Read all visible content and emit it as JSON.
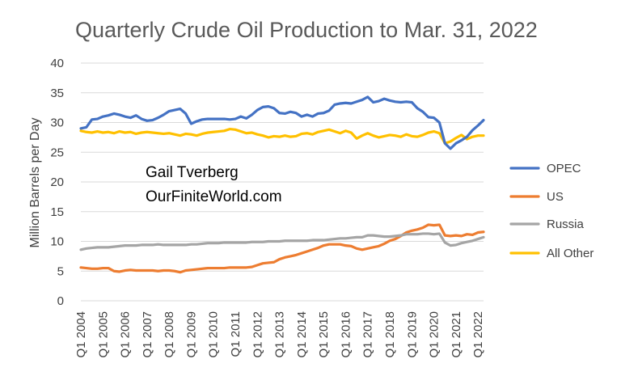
{
  "chart_data": {
    "type": "line",
    "title": "Quarterly Crude Oil Production to Mar. 31, 2022",
    "ylabel": "Million Barrels per Day",
    "xlabel": "",
    "ylim": [
      0,
      40
    ],
    "yticks": [
      0,
      5,
      10,
      15,
      20,
      25,
      30,
      35,
      40
    ],
    "grid": true,
    "legend_position": "right",
    "x_tick_labels": [
      "Q1 2004",
      "Q1 2005",
      "Q1 2006",
      "Q1 2007",
      "Q1 2008",
      "Q1 2009",
      "Q1 2010",
      "Q1 2011",
      "Q1 2012",
      "Q1 2013",
      "Q1 2014",
      "Q1 2015",
      "Q1 2016",
      "Q1 2017",
      "Q1 2018",
      "Q1 2019",
      "Q1 2020",
      "Q1 2021",
      "Q1 2022"
    ],
    "x_start": "Q1 2004",
    "x_end": "Q1 2022",
    "annotations": [
      "Gail Tverberg",
      "OurFiniteWorld.com"
    ],
    "series": [
      {
        "name": "OPEC",
        "color": "#4472C4",
        "values": [
          29.0,
          29.2,
          30.5,
          30.6,
          31.0,
          31.2,
          31.5,
          31.3,
          31.0,
          30.8,
          31.2,
          30.6,
          30.3,
          30.4,
          30.8,
          31.3,
          31.9,
          32.1,
          32.3,
          31.5,
          29.8,
          30.2,
          30.5,
          30.6,
          30.6,
          30.6,
          30.6,
          30.5,
          30.6,
          31.0,
          30.7,
          31.3,
          32.1,
          32.6,
          32.7,
          32.4,
          31.6,
          31.5,
          31.8,
          31.6,
          31.0,
          31.3,
          31.0,
          31.5,
          31.6,
          32.0,
          33.0,
          33.2,
          33.3,
          33.2,
          33.5,
          33.8,
          34.3,
          33.4,
          33.6,
          34.0,
          33.7,
          33.5,
          33.4,
          33.5,
          33.4,
          32.4,
          31.8,
          30.9,
          30.8,
          30.0,
          26.5,
          25.6,
          26.5,
          27.0,
          27.6,
          28.7,
          29.5,
          30.4
        ]
      },
      {
        "name": "US",
        "color": "#ED7D31",
        "values": [
          5.6,
          5.5,
          5.4,
          5.4,
          5.5,
          5.5,
          5.0,
          4.9,
          5.1,
          5.2,
          5.1,
          5.1,
          5.1,
          5.1,
          5.0,
          5.1,
          5.1,
          5.0,
          4.8,
          5.1,
          5.2,
          5.3,
          5.4,
          5.5,
          5.5,
          5.5,
          5.5,
          5.6,
          5.6,
          5.6,
          5.6,
          5.7,
          6.0,
          6.3,
          6.4,
          6.5,
          7.0,
          7.3,
          7.5,
          7.7,
          8.0,
          8.3,
          8.6,
          8.9,
          9.3,
          9.5,
          9.5,
          9.5,
          9.3,
          9.2,
          8.8,
          8.6,
          8.8,
          9.0,
          9.2,
          9.6,
          10.1,
          10.4,
          10.9,
          11.5,
          11.8,
          12.0,
          12.3,
          12.8,
          12.7,
          12.8,
          11.0,
          10.9,
          11.0,
          10.9,
          11.2,
          11.1,
          11.5,
          11.6
        ]
      },
      {
        "name": "Russia",
        "color": "#A5A5A5",
        "values": [
          8.6,
          8.8,
          8.9,
          9.0,
          9.0,
          9.0,
          9.1,
          9.2,
          9.3,
          9.3,
          9.3,
          9.4,
          9.4,
          9.4,
          9.5,
          9.4,
          9.4,
          9.4,
          9.4,
          9.4,
          9.5,
          9.5,
          9.6,
          9.7,
          9.7,
          9.7,
          9.8,
          9.8,
          9.8,
          9.8,
          9.8,
          9.9,
          9.9,
          9.9,
          10.0,
          10.0,
          10.0,
          10.1,
          10.1,
          10.1,
          10.1,
          10.1,
          10.2,
          10.2,
          10.2,
          10.3,
          10.4,
          10.5,
          10.5,
          10.6,
          10.7,
          10.7,
          11.0,
          11.0,
          10.9,
          10.8,
          10.8,
          10.9,
          11.0,
          11.2,
          11.2,
          11.2,
          11.3,
          11.3,
          11.2,
          11.3,
          9.8,
          9.3,
          9.4,
          9.7,
          9.9,
          10.1,
          10.4,
          10.7
        ]
      },
      {
        "name": "All Other",
        "color": "#FFC000",
        "values": [
          28.6,
          28.4,
          28.3,
          28.5,
          28.3,
          28.4,
          28.2,
          28.5,
          28.3,
          28.4,
          28.1,
          28.3,
          28.4,
          28.3,
          28.2,
          28.1,
          28.2,
          28.0,
          27.8,
          28.1,
          28.0,
          27.8,
          28.1,
          28.3,
          28.4,
          28.5,
          28.6,
          28.9,
          28.8,
          28.5,
          28.2,
          28.3,
          28.0,
          27.8,
          27.5,
          27.7,
          27.6,
          27.8,
          27.6,
          27.7,
          28.1,
          28.2,
          28.0,
          28.4,
          28.6,
          28.8,
          28.5,
          28.2,
          28.6,
          28.3,
          27.3,
          27.8,
          28.2,
          27.8,
          27.5,
          27.7,
          27.9,
          27.8,
          27.6,
          28.0,
          27.7,
          27.6,
          27.9,
          28.3,
          28.5,
          28.2,
          26.5,
          26.8,
          27.4,
          27.9,
          27.2,
          27.6,
          27.8,
          27.8
        ]
      }
    ]
  }
}
